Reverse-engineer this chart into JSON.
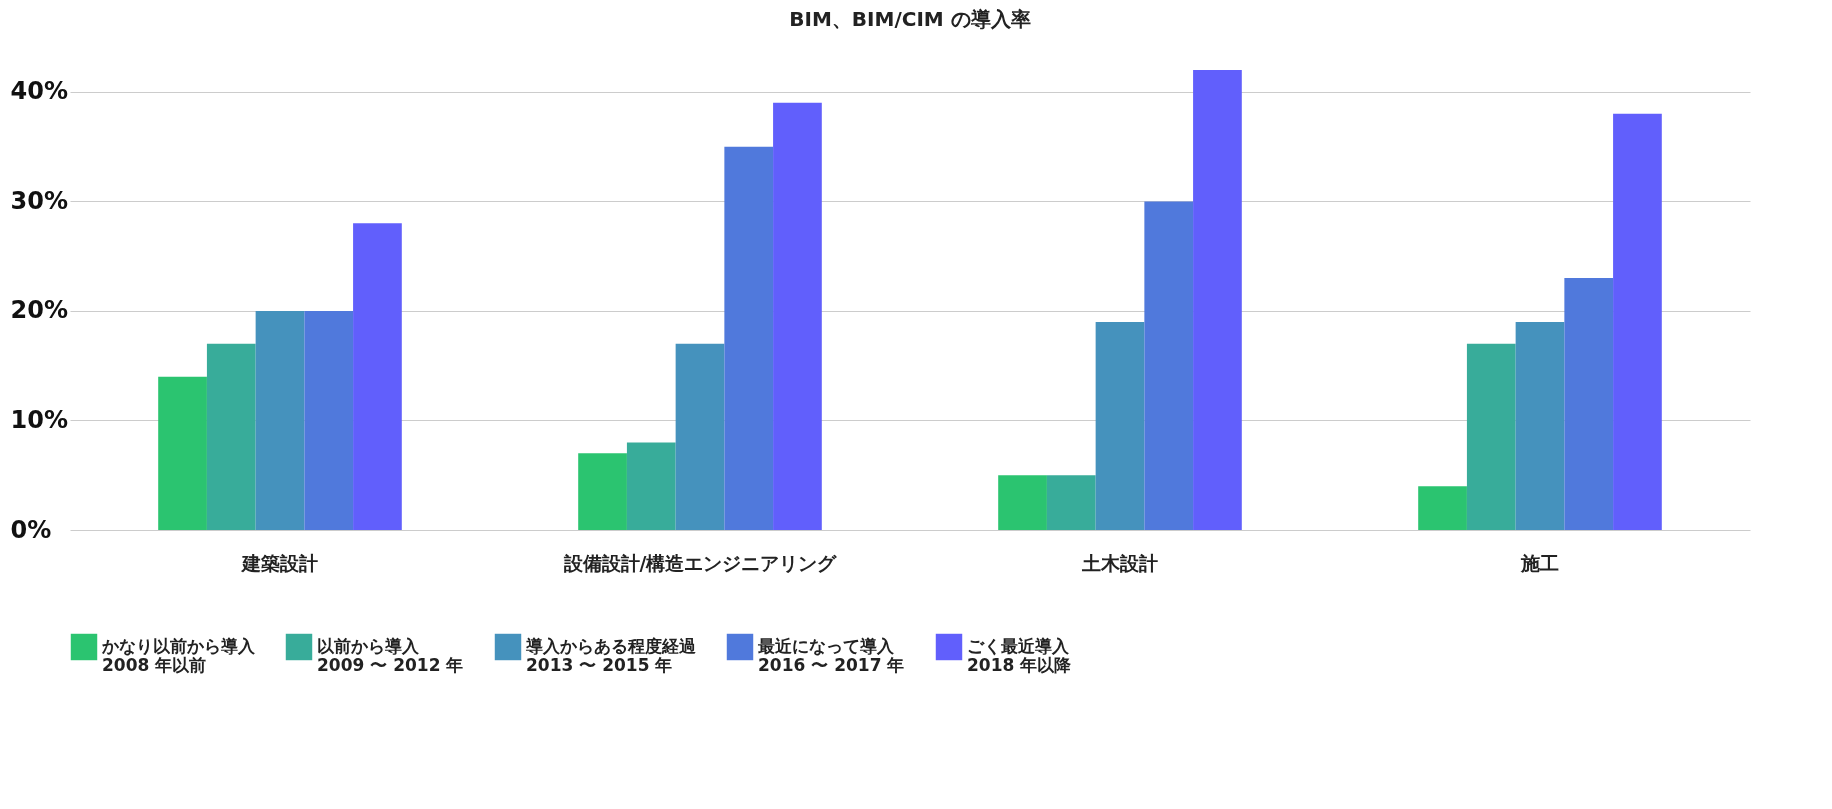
{
  "chart_data": {
    "type": "bar",
    "title": "BIM、BIM/CIM の導入率",
    "categories": [
      "建築設計",
      "設備設計/構造エンジニアリング",
      "土木設計",
      "施工"
    ],
    "series": [
      {
        "name": "かなり以前から導入\n2008 年以前",
        "color": "#2bc470",
        "values": [
          14,
          7,
          5,
          4
        ]
      },
      {
        "name": "以前から導入\n2009 〜 2012 年",
        "color": "#38ac9a",
        "values": [
          17,
          8,
          5,
          17
        ]
      },
      {
        "name": "導入からある程度経過\n2013 〜 2015 年",
        "color": "#4592bd",
        "values": [
          20,
          17,
          19,
          19
        ]
      },
      {
        "name": "最近になって導入\n2016 〜 2017 年",
        "color": "#5079dc",
        "values": [
          20,
          35,
          30,
          23
        ]
      },
      {
        "name": "ごく最近導入\n2018 年以降",
        "color": "#615ffc",
        "values": [
          28,
          39,
          42,
          38
        ]
      }
    ],
    "ylim": [
      0,
      42
    ],
    "yticks": [
      {
        "value": 0,
        "label": "0%"
      },
      {
        "value": 10,
        "label": "10%"
      },
      {
        "value": 20,
        "label": "20%"
      },
      {
        "value": 30,
        "label": "30%"
      },
      {
        "value": 40,
        "label": "40%"
      }
    ],
    "grid": "y",
    "legend": "bottom"
  }
}
